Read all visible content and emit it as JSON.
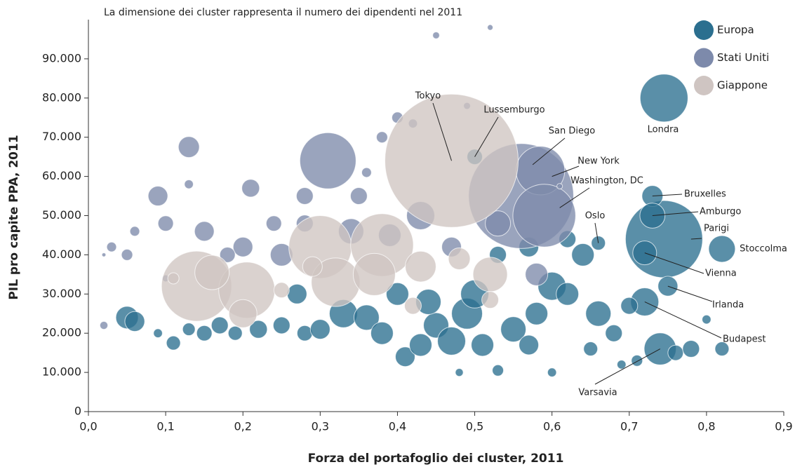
{
  "chart_data": {
    "type": "bubble",
    "subtitle": "La dimensione dei cluster rappresenta il numero dei dipendenti nel 2011",
    "x_label": "Forza del portafoglio dei cluster, 2011",
    "y_label": "PIL pro capite PPA, 2011",
    "xlim": [
      0,
      0.9
    ],
    "xticks": [
      {
        "value": 0,
        "label": "0,0"
      },
      {
        "value": 0.1,
        "label": "0,1"
      },
      {
        "value": 0.2,
        "label": "0,2"
      },
      {
        "value": 0.3,
        "label": "0,3"
      },
      {
        "value": 0.4,
        "label": "0,4"
      },
      {
        "value": 0.5,
        "label": "0,5"
      },
      {
        "value": 0.6,
        "label": "0,6"
      },
      {
        "value": 0.7,
        "label": "0,7"
      },
      {
        "value": 0.8,
        "label": "0,8"
      },
      {
        "value": 0.9,
        "label": "0,9"
      }
    ],
    "ylim": [
      0,
      100000
    ],
    "yticks": [
      0,
      {
        "value": 10000,
        "label": "10.000"
      },
      {
        "value": 20000,
        "label": "20.000"
      },
      {
        "value": 30000,
        "label": "30.000"
      },
      {
        "value": 40000,
        "label": "40.000"
      },
      {
        "value": 50000,
        "label": "50.000"
      },
      {
        "value": 60000,
        "label": "60.000"
      },
      {
        "value": 70000,
        "label": "70.000"
      },
      {
        "value": 80000,
        "label": "80.000"
      },
      {
        "value": 90000,
        "label": "90.000"
      },
      {
        "value": {
          "v": 0
        },
        "label": ""
      }
    ],
    "series": [
      {
        "name": "Europa",
        "color": "#2b6f8f",
        "x": [
          0.745,
          0.745,
          0.82,
          0.73,
          0.73,
          0.72,
          0.75,
          0.72,
          0.74,
          0.66,
          0.5,
          0.05,
          0.06,
          0.09,
          0.11,
          0.13,
          0.15,
          0.17,
          0.19,
          0.22,
          0.25,
          0.28,
          0.3,
          0.33,
          0.36,
          0.38,
          0.41,
          0.43,
          0.45,
          0.47,
          0.49,
          0.51,
          0.53,
          0.55,
          0.57,
          0.6,
          0.62,
          0.64,
          0.66,
          0.68,
          0.7,
          0.71,
          0.76,
          0.78,
          0.8,
          0.82,
          0.6,
          0.48,
          0.27,
          0.4,
          0.44,
          0.58,
          0.5,
          0.65,
          0.69,
          0.62,
          0.57,
          0.53
        ],
        "values": [
          80000,
          44000,
          41500,
          55000,
          50000,
          40500,
          32000,
          28000,
          16000,
          43000,
          65000,
          24000,
          23000,
          20000,
          17500,
          21000,
          20000,
          22000,
          20000,
          21000,
          22000,
          20000,
          21000,
          25000,
          24000,
          20000,
          14000,
          17000,
          22000,
          18000,
          25000,
          17000,
          10500,
          21000,
          17000,
          32000,
          30000,
          40000,
          25000,
          20000,
          27000,
          13000,
          15000,
          16000,
          23500,
          16000,
          10000,
          10000,
          30000,
          30000,
          28000,
          25000,
          30000,
          16000,
          12000,
          44000,
          42000,
          40000
        ],
        "sizes": [
          290,
          756,
          90,
          56,
          80,
          72,
          50,
          100,
          130,
          25,
          30,
          64,
          50,
          10,
          25,
          20,
          30,
          36,
          25,
          40,
          36,
          30,
          49,
          100,
          81,
          64,
          49,
          64,
          81,
          100,
          121,
          64,
          16,
          81,
          49,
          100,
          64,
          64,
          81,
          36,
          36,
          16,
          30,
          36,
          10,
          25,
          10,
          8,
          49,
          64,
          81,
          64,
          100,
          25,
          10,
          36,
          49,
          36
        ]
      },
      {
        "name": "Stati Uniti",
        "color": "#7d8aab",
        "x": [
          0.56,
          0.585,
          0.59,
          0.02,
          0.02,
          0.03,
          0.06,
          0.05,
          0.09,
          0.1,
          0.13,
          0.13,
          0.15,
          0.21,
          0.24,
          0.28,
          0.31,
          0.35,
          0.36,
          0.38,
          0.4,
          0.42,
          0.45,
          0.49,
          0.52,
          0.61,
          0.25,
          0.2,
          0.43,
          0.39,
          0.53,
          0.58,
          0.47,
          0.28,
          0.34,
          0.18,
          0.1
        ],
        "values": [
          55000,
          61500,
          50000,
          40000,
          22000,
          42000,
          46000,
          40000,
          55000,
          48000,
          67500,
          58000,
          46000,
          57000,
          48000,
          55000,
          64000,
          55000,
          61000,
          70000,
          75000,
          73500,
          96000,
          78000,
          98000,
          57500,
          40000,
          42000,
          50000,
          45000,
          48000,
          35000,
          42000,
          48000,
          46000,
          40000,
          34000
        ],
        "sizes": [
          1400,
          300,
          500,
          2,
          8,
          12,
          12,
          16,
          49,
          30,
          56,
          10,
          49,
          40,
          30,
          36,
          400,
          36,
          12,
          16,
          16,
          10,
          6,
          6,
          4,
          4,
          64,
          49,
          100,
          64,
          81,
          64,
          49,
          36,
          81,
          30,
          6
        ]
      },
      {
        "name": "Giappone",
        "color": "#cfc5c2",
        "x": [
          0.47,
          0.14,
          0.205,
          0.3,
          0.38,
          0.32,
          0.37,
          0.52,
          0.43,
          0.2,
          0.16,
          0.48,
          0.29,
          0.52,
          0.42,
          0.11,
          0.25
        ],
        "values": [
          64000,
          32000,
          31000,
          42000,
          42500,
          33000,
          35000,
          35000,
          37000,
          25000,
          35500,
          39000,
          37000,
          28500,
          27000,
          34000,
          31000
        ],
        "sizes": [
          2256,
          625,
          400,
          500,
          500,
          300,
          225,
          150,
          120,
          100,
          150,
          60,
          49,
          36,
          36,
          16,
          30
        ]
      }
    ],
    "annotations": [
      {
        "text": "Tokyo",
        "x": 0.47,
        "y": 64000
      },
      {
        "text": "Lussemburgo",
        "x": 0.5,
        "y": 65000
      },
      {
        "text": "San Diego",
        "x": 0.575,
        "y": 63000
      },
      {
        "text": "New York",
        "x": 0.6,
        "y": 60000
      },
      {
        "text": "Washington, DC",
        "x": 0.61,
        "y": 52000
      },
      {
        "text": "Londra",
        "x": 0.745,
        "y": 80000
      },
      {
        "text": "Bruxelles",
        "x": 0.73,
        "y": 55000
      },
      {
        "text": "Amburgo",
        "x": 0.73,
        "y": 50000
      },
      {
        "text": "Parigi",
        "x": 0.78,
        "y": 44000
      },
      {
        "text": "Stoccolma",
        "x": 0.82,
        "y": 41500
      },
      {
        "text": "Oslo",
        "x": 0.66,
        "y": 43000
      },
      {
        "text": "Vienna",
        "x": 0.72,
        "y": 40500
      },
      {
        "text": "Irlanda",
        "x": 0.75,
        "y": 32000
      },
      {
        "text": "Budapest",
        "x": 0.72,
        "y": 28000
      },
      {
        "text": "Varsavia",
        "x": 0.74,
        "y": 16000
      }
    ],
    "legend": "top-right"
  }
}
